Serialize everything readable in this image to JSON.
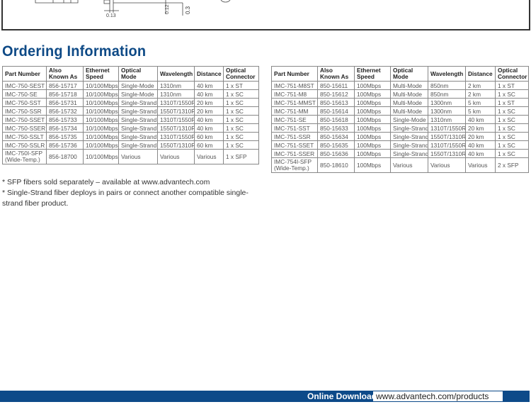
{
  "drawing": {
    "dims": [
      "0.13",
      "0.12",
      "0.3"
    ]
  },
  "section_title": "Ordering Information",
  "columns": [
    "Part Number",
    "Also Known As",
    "Ethernet Speed",
    "Optical Mode",
    "Wavelength",
    "Distance",
    "Optical Connector"
  ],
  "table_750": [
    [
      "IMC-750-SEST",
      "856-15717",
      "10/100Mbps",
      "Single-Mode",
      "1310nm",
      "40 km",
      "1 x ST"
    ],
    [
      "IMC-750-SE",
      "856-15718",
      "10/100Mbps",
      "Single-Mode",
      "1310nm",
      "40 km",
      "1 x SC"
    ],
    [
      "IMC-750-SST",
      "856-15731",
      "10/100Mbps",
      "Single-Strand",
      "1310T/1550R",
      "20 km",
      "1 x SC"
    ],
    [
      "IMC-750-SSR",
      "856-15732",
      "10/100Mbps",
      "Single-Strand",
      "1550T/1310R",
      "20 km",
      "1 x SC"
    ],
    [
      "IMC-750-SSET",
      "856-15733",
      "10/100Mbps",
      "Single-Strand",
      "1310T/1550R",
      "40 km",
      "1 x SC"
    ],
    [
      "IMC-750-SSER",
      "856-15734",
      "10/100Mbps",
      "Single-Strand",
      "1550T/1310R",
      "40 km",
      "1 x SC"
    ],
    [
      "IMC-750-SSLT",
      "856-15735",
      "10/100Mbps",
      "Single-Strand",
      "1310T/1550R",
      "60 km",
      "1 x SC"
    ],
    [
      "IMC-750-SSLR",
      "856-15736",
      "10/100Mbps",
      "Single-Strand",
      "1550T/1310R",
      "60 km",
      "1 x SC"
    ],
    [
      "IMC-750I-SFP (Wide-Temp.)",
      "856-18700",
      "10/100Mbps",
      "Various",
      "Various",
      "Various",
      "1 x SFP"
    ]
  ],
  "table_751": [
    [
      "IMC-751-M8ST",
      "850-15611",
      "100Mbps",
      "Multi-Mode",
      "850nm",
      "2 km",
      "1 x ST"
    ],
    [
      "IMC-751-M8",
      "850-15612",
      "100Mbps",
      "Multi-Mode",
      "850nm",
      "2 km",
      "1 x SC"
    ],
    [
      "IMC-751-MMST",
      "850-15613",
      "100Mbps",
      "Multi-Mode",
      "1300nm",
      "5 km",
      "1 x ST"
    ],
    [
      "IMC-751-MM",
      "850-15614",
      "100Mbps",
      "Multi-Mode",
      "1300nm",
      "5 km",
      "1 x SC"
    ],
    [
      "IMC-751-SE",
      "850-15618",
      "100Mbps",
      "Single-Mode",
      "1310nm",
      "40 km",
      "1 x SC"
    ],
    [
      "IMC-751-SST",
      "850-15633",
      "100Mbps",
      "Single-Strand",
      "1310T/1550R",
      "20 km",
      "1 x SC"
    ],
    [
      "IMC-751-SSR",
      "850-15634",
      "100Mbps",
      "Single-Strand",
      "1550T/1310R",
      "20 km",
      "1 x SC"
    ],
    [
      "IMC-751-SSET",
      "850-15635",
      "100Mbps",
      "Single-Strand",
      "1310T/1550R",
      "40 km",
      "1 x SC"
    ],
    [
      "IMC-751-SSER",
      "850-15636",
      "100Mbps",
      "Single-Strand",
      "1550T/1310R",
      "40 km",
      "1 x SC"
    ],
    [
      "IMC-754I-SFP (Wide-Temp.)",
      "850-18610",
      "100Mbps",
      "Various",
      "Various",
      "Various",
      "2 x SFP"
    ]
  ],
  "notes": [
    "* SFP fibers sold separately – available at www.advantech.com",
    "* Single-Strand fiber deploys in pairs or connect another compatible single-strand fiber product."
  ],
  "footer": {
    "label": "Online Download",
    "url": "www.advantech.com/products"
  },
  "colors": {
    "brand_blue": "#0d4a89"
  }
}
